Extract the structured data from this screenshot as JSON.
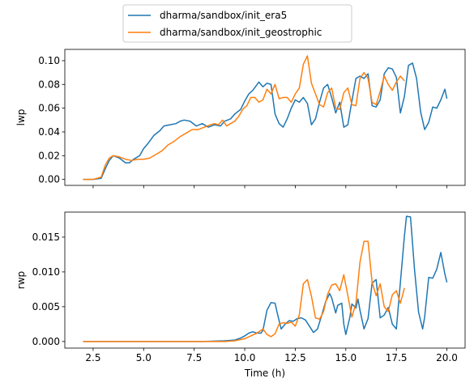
{
  "chart_data": [
    {
      "type": "line",
      "ylabel": "lwp",
      "xlabel": "",
      "xlim": [
        1.1,
        20.9
      ],
      "ylim": [
        -0.005,
        0.1095
      ],
      "xticks": [
        2.5,
        5.0,
        7.5,
        10.0,
        12.5,
        15.0,
        17.5,
        20.0
      ],
      "xtick_labels": [],
      "yticks": [
        0.0,
        0.02,
        0.04,
        0.06,
        0.08,
        0.1
      ],
      "ytick_labels": [
        "0.00",
        "0.02",
        "0.04",
        "0.06",
        "0.08",
        "0.10"
      ],
      "legend": "top-center",
      "grid": false,
      "series": [
        {
          "name": "dharma/sandbox/init_era5",
          "color": "#1f77b4",
          "x": [
            2.0,
            2.5,
            2.9,
            3.1,
            3.3,
            3.5,
            3.8,
            4.1,
            4.3,
            4.5,
            4.8,
            5.0,
            5.2,
            5.5,
            5.8,
            6.0,
            6.3,
            6.6,
            6.8,
            7.0,
            7.3,
            7.6,
            7.9,
            8.2,
            8.5,
            8.8,
            9.0,
            9.3,
            9.5,
            9.8,
            10.0,
            10.2,
            10.4,
            10.7,
            10.9,
            11.1,
            11.3,
            11.5,
            11.7,
            11.9,
            12.1,
            12.3,
            12.5,
            12.7,
            12.9,
            13.1,
            13.3,
            13.5,
            13.7,
            13.9,
            14.1,
            14.3,
            14.5,
            14.7,
            14.9,
            15.1,
            15.3,
            15.5,
            15.7,
            15.9,
            16.1,
            16.3,
            16.5,
            16.7,
            16.9,
            17.1,
            17.3,
            17.5,
            17.7,
            17.9,
            18.1,
            18.3,
            18.5,
            18.7,
            18.9,
            19.1,
            19.3,
            19.5,
            19.7,
            19.9,
            20.0
          ],
          "values": [
            0.0,
            0.0,
            0.001,
            0.009,
            0.016,
            0.02,
            0.018,
            0.014,
            0.014,
            0.017,
            0.02,
            0.026,
            0.03,
            0.037,
            0.041,
            0.045,
            0.046,
            0.047,
            0.049,
            0.05,
            0.049,
            0.045,
            0.047,
            0.044,
            0.046,
            0.045,
            0.049,
            0.051,
            0.055,
            0.059,
            0.066,
            0.072,
            0.075,
            0.082,
            0.078,
            0.081,
            0.08,
            0.055,
            0.047,
            0.044,
            0.051,
            0.06,
            0.067,
            0.065,
            0.069,
            0.064,
            0.046,
            0.051,
            0.065,
            0.077,
            0.08,
            0.069,
            0.056,
            0.065,
            0.044,
            0.046,
            0.066,
            0.085,
            0.087,
            0.085,
            0.089,
            0.062,
            0.061,
            0.067,
            0.089,
            0.094,
            0.093,
            0.086,
            0.056,
            0.07,
            0.096,
            0.098,
            0.085,
            0.057,
            0.042,
            0.048,
            0.061,
            0.06,
            0.067,
            0.076,
            0.068
          ]
        },
        {
          "name": "dharma/sandbox/init_geostrophic",
          "color": "#ff7f0e",
          "x": [
            2.0,
            2.5,
            2.9,
            3.1,
            3.3,
            3.5,
            3.8,
            4.1,
            4.4,
            4.7,
            5.0,
            5.3,
            5.6,
            5.9,
            6.2,
            6.5,
            6.8,
            7.1,
            7.4,
            7.7,
            8.0,
            8.3,
            8.5,
            8.7,
            8.9,
            9.1,
            9.3,
            9.5,
            9.7,
            9.9,
            10.1,
            10.3,
            10.5,
            10.7,
            10.9,
            11.1,
            11.3,
            11.5,
            11.7,
            11.9,
            12.1,
            12.3,
            12.5,
            12.7,
            12.9,
            13.1,
            13.3,
            13.5,
            13.7,
            13.9,
            14.1,
            14.3,
            14.5,
            14.7,
            14.9,
            15.1,
            15.3,
            15.5,
            15.7,
            15.9,
            16.1,
            16.3,
            16.5,
            16.7,
            16.9,
            17.1,
            17.3,
            17.5,
            17.7,
            17.9
          ],
          "values": [
            0.0,
            0.0,
            0.002,
            0.012,
            0.018,
            0.02,
            0.019,
            0.017,
            0.016,
            0.017,
            0.017,
            0.018,
            0.021,
            0.024,
            0.029,
            0.032,
            0.036,
            0.039,
            0.042,
            0.042,
            0.044,
            0.046,
            0.047,
            0.046,
            0.05,
            0.045,
            0.047,
            0.049,
            0.053,
            0.059,
            0.062,
            0.069,
            0.069,
            0.065,
            0.067,
            0.076,
            0.072,
            0.08,
            0.068,
            0.069,
            0.069,
            0.065,
            0.072,
            0.077,
            0.097,
            0.104,
            0.081,
            0.072,
            0.063,
            0.061,
            0.073,
            0.077,
            0.06,
            0.059,
            0.073,
            0.077,
            0.063,
            0.062,
            0.085,
            0.09,
            0.085,
            0.065,
            0.063,
            0.074,
            0.087,
            0.08,
            0.075,
            0.082,
            0.087,
            0.083
          ]
        }
      ]
    },
    {
      "type": "line",
      "ylabel": "rwp",
      "xlabel": "Time (h)",
      "xlim": [
        1.1,
        20.9
      ],
      "ylim": [
        -0.00095,
        0.0186
      ],
      "xticks": [
        2.5,
        5.0,
        7.5,
        10.0,
        12.5,
        15.0,
        17.5,
        20.0
      ],
      "xtick_labels": [
        "2.5",
        "5.0",
        "7.5",
        "10.0",
        "12.5",
        "15.0",
        "17.5",
        "20.0"
      ],
      "yticks": [
        0.0,
        0.005,
        0.01,
        0.015
      ],
      "ytick_labels": [
        "0.000",
        "0.005",
        "0.010",
        "0.015"
      ],
      "grid": false,
      "series": [
        {
          "name": "dharma/sandbox/init_era5",
          "color": "#1f77b4",
          "x": [
            2.0,
            4.0,
            6.0,
            8.0,
            9.0,
            9.5,
            9.8,
            10.0,
            10.2,
            10.4,
            10.6,
            10.8,
            10.9,
            11.1,
            11.3,
            11.5,
            11.6,
            11.7,
            11.8,
            12.0,
            12.2,
            12.4,
            12.6,
            12.8,
            13.0,
            13.2,
            13.4,
            13.6,
            13.8,
            14.0,
            14.2,
            14.3,
            14.5,
            14.6,
            14.8,
            14.9,
            15.0,
            15.2,
            15.3,
            15.5,
            15.6,
            15.7,
            15.9,
            16.1,
            16.3,
            16.5,
            16.7,
            16.9,
            17.1,
            17.3,
            17.5,
            17.7,
            17.9,
            18.0,
            18.2,
            18.4,
            18.6,
            18.8,
            18.9,
            19.1,
            19.3,
            19.5,
            19.7,
            19.9,
            20.0
          ],
          "values": [
            0.0,
            0.0,
            0.0,
            0.0,
            0.0001,
            0.0002,
            0.0005,
            0.0008,
            0.0012,
            0.0014,
            0.0012,
            0.0012,
            0.0016,
            0.0045,
            0.0056,
            0.0055,
            0.0042,
            0.003,
            0.0018,
            0.0025,
            0.003,
            0.0029,
            0.0033,
            0.0034,
            0.0031,
            0.0022,
            0.0013,
            0.0018,
            0.0037,
            0.0057,
            0.0069,
            0.0063,
            0.0041,
            0.0052,
            0.0055,
            0.0025,
            0.001,
            0.0035,
            0.0054,
            0.0048,
            0.0061,
            0.0045,
            0.0018,
            0.0033,
            0.0084,
            0.0089,
            0.0034,
            0.0038,
            0.0049,
            0.0025,
            0.0018,
            0.0085,
            0.0152,
            0.018,
            0.0179,
            0.0103,
            0.0042,
            0.0018,
            0.0035,
            0.0092,
            0.0091,
            0.0104,
            0.0128,
            0.0097,
            0.0085
          ]
        },
        {
          "name": "dharma/sandbox/init_geostrophic",
          "color": "#ff7f0e",
          "x": [
            2.0,
            4.0,
            6.0,
            8.0,
            9.0,
            9.5,
            10.0,
            10.3,
            10.6,
            10.9,
            11.1,
            11.3,
            11.5,
            11.7,
            11.9,
            12.1,
            12.3,
            12.5,
            12.7,
            12.9,
            13.1,
            13.3,
            13.5,
            13.7,
            13.9,
            14.1,
            14.3,
            14.5,
            14.7,
            14.9,
            15.1,
            15.3,
            15.5,
            15.7,
            15.9,
            16.1,
            16.3,
            16.5,
            16.7,
            16.9,
            17.1,
            17.3,
            17.5,
            17.7,
            17.9
          ],
          "values": [
            0.0,
            0.0,
            0.0,
            0.0,
            0.0,
            0.0001,
            0.0004,
            0.0008,
            0.0012,
            0.0018,
            0.001,
            0.0007,
            0.0011,
            0.0025,
            0.0027,
            0.0026,
            0.0028,
            0.0022,
            0.0038,
            0.0083,
            0.0089,
            0.0065,
            0.0034,
            0.0032,
            0.0043,
            0.0068,
            0.0081,
            0.0083,
            0.0073,
            0.0096,
            0.0066,
            0.0035,
            0.0055,
            0.0114,
            0.0144,
            0.0144,
            0.0085,
            0.0066,
            0.0083,
            0.005,
            0.0043,
            0.0067,
            0.0073,
            0.0055,
            0.0077
          ]
        }
      ]
    }
  ]
}
